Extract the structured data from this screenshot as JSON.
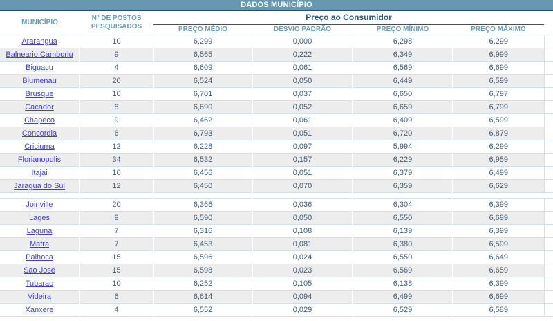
{
  "title": "DADOS MUNICÍPIO",
  "table": {
    "columns": {
      "municipio": "MUNICÍPIO",
      "postos": "Nº DE POSTOS PESQUISADOS",
      "group": "Preço ao Consumidor",
      "preco_medio": "PREÇO MÉDIO",
      "desvio_padrao": "DESVIO PADRÃO",
      "preco_minimo": "PREÇO MÍNIMO",
      "preco_maximo": "PREÇO MÁXIMO"
    },
    "row_groups": [
      {
        "rows": [
          {
            "municipio": "Ararangua",
            "postos": "10",
            "preco_medio": "6,299",
            "desvio_padrao": "0,000",
            "preco_minimo": "6,298",
            "preco_maximo": "6,299"
          },
          {
            "municipio": "Balneario Camboriu",
            "postos": "9",
            "preco_medio": "6,565",
            "desvio_padrao": "0,222",
            "preco_minimo": "6,349",
            "preco_maximo": "6,999"
          },
          {
            "municipio": "Biguacu",
            "postos": "4",
            "preco_medio": "6,609",
            "desvio_padrao": "0,061",
            "preco_minimo": "6,569",
            "preco_maximo": "6,699"
          },
          {
            "municipio": "Blumenau",
            "postos": "20",
            "preco_medio": "6,524",
            "desvio_padrao": "0,050",
            "preco_minimo": "6,449",
            "preco_maximo": "6,599"
          },
          {
            "municipio": "Brusque",
            "postos": "10",
            "preco_medio": "6,701",
            "desvio_padrao": "0,037",
            "preco_minimo": "6,650",
            "preco_maximo": "6,797"
          },
          {
            "municipio": "Cacador",
            "postos": "8",
            "preco_medio": "6,690",
            "desvio_padrao": "0,052",
            "preco_minimo": "6,659",
            "preco_maximo": "6,799"
          },
          {
            "municipio": "Chapeco",
            "postos": "9",
            "preco_medio": "6,462",
            "desvio_padrao": "0,061",
            "preco_minimo": "6,409",
            "preco_maximo": "6,599"
          },
          {
            "municipio": "Concordia",
            "postos": "6",
            "preco_medio": "6,793",
            "desvio_padrao": "0,051",
            "preco_minimo": "6,720",
            "preco_maximo": "6,879"
          },
          {
            "municipio": "Criciuma",
            "postos": "12",
            "preco_medio": "6,228",
            "desvio_padrao": "0,097",
            "preco_minimo": "5,994",
            "preco_maximo": "6,299"
          },
          {
            "municipio": "Florianopolis",
            "postos": "34",
            "preco_medio": "6,532",
            "desvio_padrao": "0,157",
            "preco_minimo": "6,229",
            "preco_maximo": "6,959"
          },
          {
            "municipio": "Itajai",
            "postos": "10",
            "preco_medio": "6,456",
            "desvio_padrao": "0,051",
            "preco_minimo": "6,379",
            "preco_maximo": "6,499"
          },
          {
            "municipio": "Jaragua do Sul",
            "postos": "12",
            "preco_medio": "6,450",
            "desvio_padrao": "0,070",
            "preco_minimo": "6,359",
            "preco_maximo": "6,629"
          }
        ]
      },
      {
        "rows": [
          {
            "municipio": "Joinville",
            "postos": "20",
            "preco_medio": "6,366",
            "desvio_padrao": "0,036",
            "preco_minimo": "6,304",
            "preco_maximo": "6,399"
          },
          {
            "municipio": "Lages",
            "postos": "9",
            "preco_medio": "6,590",
            "desvio_padrao": "0,050",
            "preco_minimo": "6,550",
            "preco_maximo": "6,699"
          },
          {
            "municipio": "Laguna",
            "postos": "7",
            "preco_medio": "6,316",
            "desvio_padrao": "0,108",
            "preco_minimo": "6,139",
            "preco_maximo": "6,399"
          },
          {
            "municipio": "Mafra",
            "postos": "7",
            "preco_medio": "6,453",
            "desvio_padrao": "0,081",
            "preco_minimo": "6,380",
            "preco_maximo": "6,599"
          },
          {
            "municipio": "Palhoca",
            "postos": "15",
            "preco_medio": "6,596",
            "desvio_padrao": "0,024",
            "preco_minimo": "6,550",
            "preco_maximo": "6,649"
          },
          {
            "municipio": "Sao Jose",
            "postos": "15",
            "preco_medio": "6,598",
            "desvio_padrao": "0,023",
            "preco_minimo": "6,569",
            "preco_maximo": "6,659"
          },
          {
            "municipio": "Tubarao",
            "postos": "10",
            "preco_medio": "6,252",
            "desvio_padrao": "0,105",
            "preco_minimo": "6,138",
            "preco_maximo": "6,399"
          },
          {
            "municipio": "Videira",
            "postos": "6",
            "preco_medio": "6,614",
            "desvio_padrao": "0,094",
            "preco_minimo": "6,499",
            "preco_maximo": "6,699"
          },
          {
            "municipio": "Xanxere",
            "postos": "4",
            "preco_medio": "6,552",
            "desvio_padrao": "0,029",
            "preco_minimo": "6,529",
            "preco_maximo": "6,589"
          }
        ]
      }
    ]
  },
  "colors": {
    "title_bar_bg": "#6898b0",
    "title_bar_border": "#1d547e",
    "header_text": "#6a9bb1",
    "group_header_text": "#1c5a8a",
    "row_separator": "#cfe0ea",
    "stripe_bg": "#ededed",
    "value_text": "#3c5a75",
    "link_text": "#3f3fd4"
  }
}
